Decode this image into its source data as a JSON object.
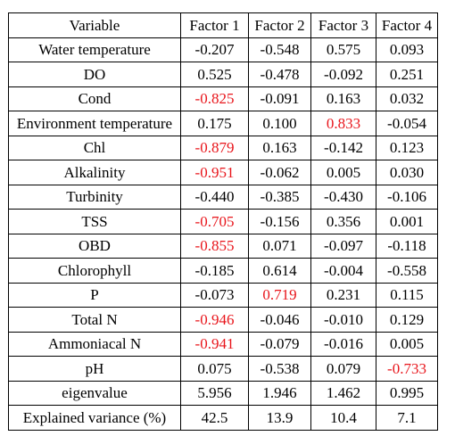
{
  "highlight_color": "#e8151b",
  "table": {
    "headers": [
      "Variable",
      "Factor 1",
      "Factor 2",
      "Factor 3",
      "Factor 4"
    ],
    "rows": [
      {
        "variable": "Water temperature",
        "values": [
          "-0.207",
          "-0.548",
          "0.575",
          "0.093"
        ],
        "highlight": [
          false,
          false,
          false,
          false
        ]
      },
      {
        "variable": "DO",
        "values": [
          "0.525",
          "-0.478",
          "-0.092",
          "0.251"
        ],
        "highlight": [
          false,
          false,
          false,
          false
        ]
      },
      {
        "variable": "Cond",
        "values": [
          "-0.825",
          "-0.091",
          "0.163",
          "0.032"
        ],
        "highlight": [
          true,
          false,
          false,
          false
        ]
      },
      {
        "variable": "Environment temperature",
        "values": [
          "0.175",
          "0.100",
          "0.833",
          "-0.054"
        ],
        "highlight": [
          false,
          false,
          true,
          false
        ]
      },
      {
        "variable": "Chl",
        "values": [
          "-0.879",
          "0.163",
          "-0.142",
          "0.123"
        ],
        "highlight": [
          true,
          false,
          false,
          false
        ]
      },
      {
        "variable": "Alkalinity",
        "values": [
          "-0.951",
          "-0.062",
          "0.005",
          "0.030"
        ],
        "highlight": [
          true,
          false,
          false,
          false
        ]
      },
      {
        "variable": "Turbinity",
        "values": [
          "-0.440",
          "-0.385",
          "-0.430",
          "-0.106"
        ],
        "highlight": [
          false,
          false,
          false,
          false
        ]
      },
      {
        "variable": "TSS",
        "values": [
          "-0.705",
          "-0.156",
          "0.356",
          "0.001"
        ],
        "highlight": [
          true,
          false,
          false,
          false
        ]
      },
      {
        "variable": "OBD",
        "values": [
          "-0.855",
          "0.071",
          "-0.097",
          "-0.118"
        ],
        "highlight": [
          true,
          false,
          false,
          false
        ]
      },
      {
        "variable": "Chlorophyll",
        "values": [
          "-0.185",
          "0.614",
          "-0.004",
          "-0.558"
        ],
        "highlight": [
          false,
          false,
          false,
          false
        ]
      },
      {
        "variable": "P",
        "values": [
          "-0.073",
          "0.719",
          "0.231",
          "0.115"
        ],
        "highlight": [
          false,
          true,
          false,
          false
        ]
      },
      {
        "variable": "Total N",
        "values": [
          "-0.946",
          "-0.046",
          "-0.010",
          "0.129"
        ],
        "highlight": [
          true,
          false,
          false,
          false
        ]
      },
      {
        "variable": "Ammoniacal N",
        "values": [
          "-0.941",
          "-0.079",
          "-0.016",
          "0.005"
        ],
        "highlight": [
          true,
          false,
          false,
          false
        ]
      },
      {
        "variable": "pH",
        "values": [
          "0.075",
          "-0.538",
          "0.079",
          "-0.733"
        ],
        "highlight": [
          false,
          false,
          false,
          true
        ]
      },
      {
        "variable": "eigenvalue",
        "values": [
          "5.956",
          "1.946",
          "1.462",
          "0.995"
        ],
        "highlight": [
          false,
          false,
          false,
          false
        ]
      },
      {
        "variable": "Explained variance (%)",
        "values": [
          "42.5",
          "13.9",
          "10.4",
          "7.1"
        ],
        "highlight": [
          false,
          false,
          false,
          false
        ]
      }
    ]
  }
}
